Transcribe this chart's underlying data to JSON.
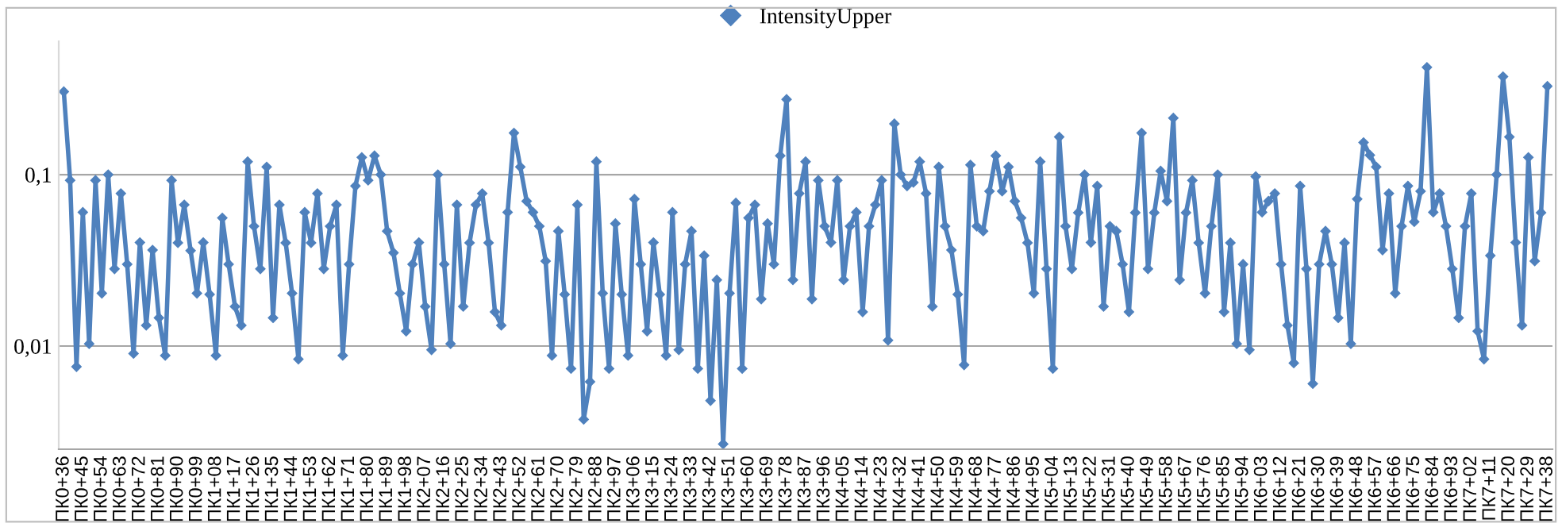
{
  "chart_data": {
    "type": "line",
    "legend": "top",
    "grid": "y",
    "log": "y",
    "marker": "diamond",
    "line_style": "solid",
    "ylim": [
      0.0025,
      0.6
    ],
    "yticks": [
      {
        "value": 0.01,
        "label": "0,01"
      },
      {
        "value": 0.1,
        "label": "0,1"
      }
    ],
    "categories": [
      "ПК0+36",
      null,
      null,
      "ПК0+45",
      null,
      null,
      "ПК0+54",
      null,
      null,
      "ПК0+63",
      null,
      null,
      "ПК0+72",
      null,
      null,
      "ПК0+81",
      null,
      null,
      "ПК0+90",
      null,
      null,
      "ПК0+99",
      null,
      null,
      "ПК1+08",
      null,
      null,
      "ПК1+17",
      null,
      null,
      "ПК1+26",
      null,
      null,
      "ПК1+35",
      null,
      null,
      "ПК1+44",
      null,
      null,
      "ПК1+53",
      null,
      null,
      "ПК1+62",
      null,
      null,
      "ПК1+71",
      null,
      null,
      "ПК1+80",
      null,
      null,
      "ПК1+89",
      null,
      null,
      "ПК1+98",
      null,
      null,
      "ПК2+07",
      null,
      null,
      "ПК2+16",
      null,
      null,
      "ПК2+25",
      null,
      null,
      "ПК2+34",
      null,
      null,
      "ПК2+43",
      null,
      null,
      "ПК2+52",
      null,
      null,
      "ПК2+61",
      null,
      null,
      "ПК2+70",
      null,
      null,
      "ПК2+79",
      null,
      null,
      "ПК2+88",
      null,
      null,
      "ПК2+97",
      null,
      null,
      "ПК3+06",
      null,
      null,
      "ПК3+15",
      null,
      null,
      "ПК3+24",
      null,
      null,
      "ПК3+33",
      null,
      null,
      "ПК3+42",
      null,
      null,
      "ПК3+51",
      null,
      null,
      "ПК3+60",
      null,
      null,
      "ПК3+69",
      null,
      null,
      "ПК3+78",
      null,
      null,
      "ПК3+87",
      null,
      null,
      "ПК3+96",
      null,
      null,
      "ПК4+05",
      null,
      null,
      "ПК4+14",
      null,
      null,
      "ПК4+23",
      null,
      null,
      "ПК4+32",
      null,
      null,
      "ПК4+41",
      null,
      null,
      "ПК4+50",
      null,
      null,
      "ПК4+59",
      null,
      null,
      "ПК4+68",
      null,
      null,
      "ПК4+77",
      null,
      null,
      "ПК4+86",
      null,
      null,
      "ПК4+95",
      null,
      null,
      "ПК5+04",
      null,
      null,
      "ПК5+13",
      null,
      null,
      "ПК5+22",
      null,
      null,
      "ПК5+31",
      null,
      null,
      "ПК5+40",
      null,
      null,
      "ПК5+49",
      null,
      null,
      "ПК5+58",
      null,
      null,
      "ПК5+67",
      null,
      null,
      "ПК5+76",
      null,
      null,
      "ПК5+85",
      null,
      null,
      "ПК5+94",
      null,
      null,
      "ПК6+03",
      null,
      null,
      "ПК6+12",
      null,
      null,
      "ПК6+21",
      null,
      null,
      "ПК6+30",
      null,
      null,
      "ПК6+39",
      null,
      null,
      "ПК6+48",
      null,
      null,
      "ПК6+57",
      null,
      null,
      "ПК6+66",
      null,
      null,
      "ПК6+75",
      null,
      null,
      "ПК6+84",
      null,
      null,
      "ПК6+93",
      null,
      null,
      "ПК7+02",
      null,
      null,
      "ПК7+11",
      null,
      null,
      "ПК7+20",
      null,
      null,
      "ПК7+29",
      null,
      null,
      "ПК7+38"
    ],
    "series": [
      {
        "name": "IntensityUpper",
        "color": "#4f81bd",
        "values": [
          0.305,
          0.0927,
          0.00757,
          0.0603,
          0.0103,
          0.0927,
          0.0203,
          0.1,
          0.0282,
          0.0776,
          0.03,
          0.00904,
          0.0402,
          0.0132,
          0.0363,
          0.0146,
          0.0088,
          0.0927,
          0.04,
          0.0667,
          0.036,
          0.0203,
          0.0402,
          0.02,
          0.0088,
          0.0559,
          0.03,
          0.017,
          0.0132,
          0.119,
          0.05,
          0.0282,
          0.111,
          0.0146,
          0.0667,
          0.04,
          0.0203,
          0.00838,
          0.0603,
          0.04,
          0.0776,
          0.0282,
          0.05,
          0.0667,
          0.0088,
          0.03,
          0.0859,
          0.126,
          0.0927,
          0.129,
          0.1,
          0.0468,
          0.035,
          0.0203,
          0.0122,
          0.03,
          0.0402,
          0.017,
          0.0095,
          0.1,
          0.03,
          0.0103,
          0.0667,
          0.017,
          0.04,
          0.0667,
          0.0776,
          0.04,
          0.0158,
          0.0132,
          0.0603,
          0.175,
          0.111,
          0.07,
          0.0603,
          0.05,
          0.0313,
          0.0088,
          0.0468,
          0.02,
          0.00738,
          0.0667,
          0.00373,
          0.00618,
          0.119,
          0.0203,
          0.00738,
          0.0518,
          0.02,
          0.0088,
          0.072,
          0.03,
          0.0122,
          0.0402,
          0.02,
          0.0088,
          0.0603,
          0.0095,
          0.03,
          0.0468,
          0.00738,
          0.0337,
          0.0048,
          0.0243,
          0.00268,
          0.0203,
          0.0684,
          0.00738,
          0.0559,
          0.0667,
          0.0188,
          0.0518,
          0.03,
          0.129,
          0.275,
          0.0243,
          0.0776,
          0.119,
          0.0188,
          0.0927,
          0.05,
          0.0402,
          0.0927,
          0.0243,
          0.05,
          0.0603,
          0.0158,
          0.05,
          0.0667,
          0.0927,
          0.0108,
          0.198,
          0.1,
          0.0859,
          0.09,
          0.119,
          0.0776,
          0.017,
          0.111,
          0.05,
          0.0363,
          0.02,
          0.00776,
          0.114,
          0.05,
          0.0468,
          0.08,
          0.129,
          0.08,
          0.111,
          0.07,
          0.0559,
          0.04,
          0.0203,
          0.119,
          0.0282,
          0.00738,
          0.166,
          0.05,
          0.0282,
          0.06,
          0.1,
          0.0402,
          0.0859,
          0.017,
          0.05,
          0.0468,
          0.03,
          0.0158,
          0.06,
          0.175,
          0.0282,
          0.06,
          0.105,
          0.07,
          0.214,
          0.0243,
          0.06,
          0.0927,
          0.04,
          0.0203,
          0.05,
          0.1,
          0.0158,
          0.04,
          0.0103,
          0.03,
          0.0095,
          0.0975,
          0.0603,
          0.07,
          0.0776,
          0.03,
          0.0132,
          0.00796,
          0.0859,
          0.0282,
          0.00603,
          0.03,
          0.0468,
          0.03,
          0.0146,
          0.04,
          0.0103,
          0.072,
          0.154,
          0.13,
          0.111,
          0.0363,
          0.0776,
          0.0203,
          0.05,
          0.0859,
          0.0531,
          0.08,
          0.423,
          0.0603,
          0.0776,
          0.05,
          0.0282,
          0.0146,
          0.05,
          0.0776,
          0.0122,
          0.00838,
          0.0337,
          0.1,
          0.373,
          0.166,
          0.0402,
          0.0132,
          0.126,
          0.0313,
          0.06,
          0.328
        ]
      }
    ]
  }
}
